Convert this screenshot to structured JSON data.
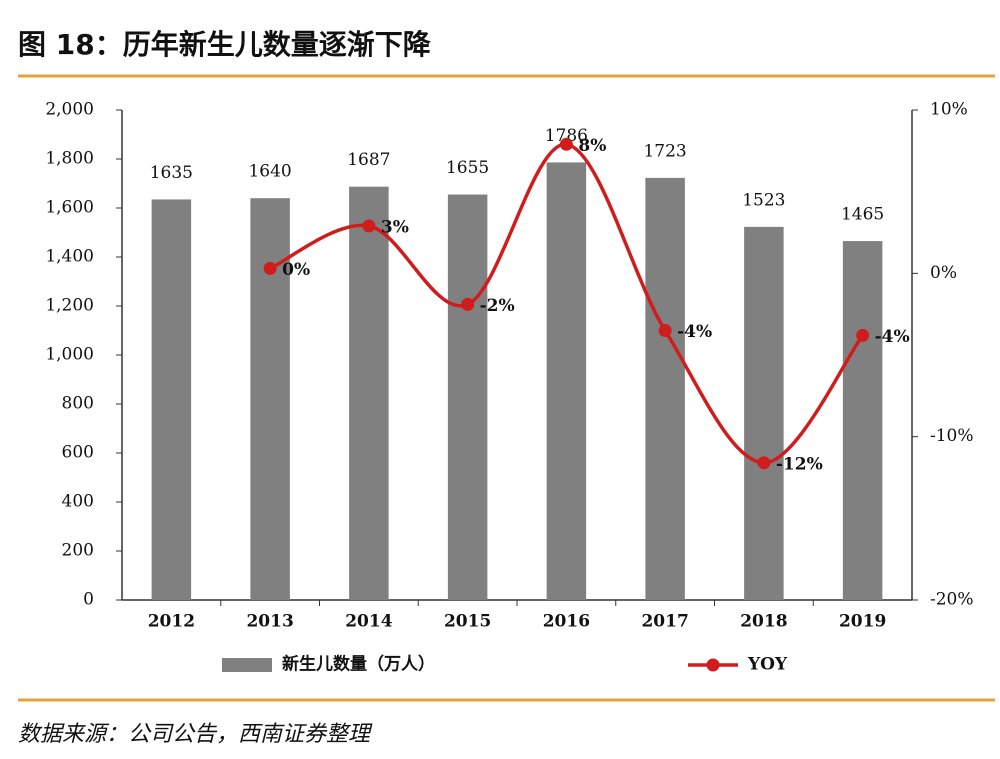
{
  "title": "图 18：历年新生儿数量逐渐下降",
  "source": "数据来源：公司公告，西南证券整理",
  "chart_data": {
    "type": "combo",
    "categories": [
      "2012",
      "2013",
      "2014",
      "2015",
      "2016",
      "2017",
      "2018",
      "2019"
    ],
    "series": [
      {
        "name": "新生儿数量（万人）",
        "type": "bar",
        "color": "#808080",
        "axis": "y",
        "values": [
          1635,
          1640,
          1687,
          1655,
          1786,
          1723,
          1523,
          1465
        ]
      },
      {
        "name": "YOY",
        "type": "line",
        "color": "#d01c1c",
        "axis": "y2",
        "values": [
          null,
          0.3,
          2.9,
          -1.9,
          7.9,
          -3.5,
          -11.6,
          -3.8
        ],
        "value_labels": [
          null,
          "0%",
          "3%",
          "-2%",
          "8%",
          "-4%",
          "-12%",
          "-4%"
        ]
      }
    ],
    "ylim": [
      0,
      2000
    ],
    "yticks": [
      0,
      200,
      400,
      600,
      800,
      {
        "value": 1000,
        "label": "1,000"
      },
      {
        "value": 1200,
        "label": "1,200"
      },
      {
        "value": 1400,
        "label": "1,400"
      },
      {
        "value": 1600,
        "label": "1,600"
      },
      {
        "value": 1800,
        "label": "1,800"
      },
      {
        "value": 2000,
        "label": "2,000"
      }
    ],
    "y2lim": [
      -20,
      10
    ],
    "y2ticks": [
      {
        "value": -20,
        "label": "-20%"
      },
      {
        "value": -10,
        "label": "-10%"
      },
      {
        "value": 0,
        "label": "0%"
      },
      {
        "value": 10,
        "label": "10%"
      }
    ],
    "grid": false
  }
}
